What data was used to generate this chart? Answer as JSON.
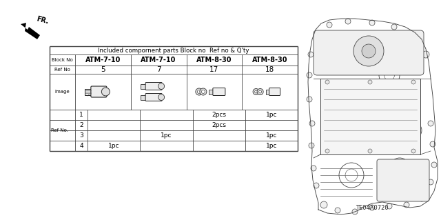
{
  "title": "Included compornent parts Block no  Ref no & Q'ty",
  "block_nos": [
    "ATM-7-10",
    "ATM-7-10",
    "ATM-8-30",
    "ATM-8-30"
  ],
  "ref_nos": [
    "5",
    "7",
    "17",
    "18"
  ],
  "ref_no_rows": [
    {
      "label": "1",
      "values": [
        "",
        "",
        "2pcs",
        "1pc"
      ]
    },
    {
      "label": "2",
      "values": [
        "",
        "",
        "2pcs",
        ""
      ]
    },
    {
      "label": "3",
      "values": [
        "",
        "1pc",
        "",
        "1pc"
      ]
    },
    {
      "label": "4",
      "values": [
        "1pc",
        "",
        "",
        "1pc"
      ]
    }
  ],
  "row_header_label": "Ref No.",
  "diagram_code": "TE04A0720",
  "bg_color": "#ffffff",
  "table_line_color": "#444444"
}
